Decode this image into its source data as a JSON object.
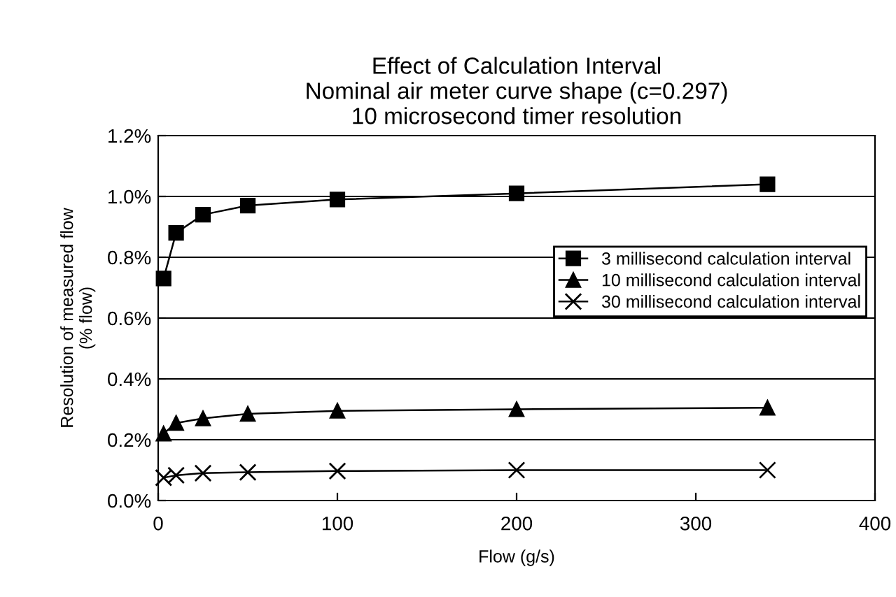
{
  "chart_data": {
    "type": "line",
    "title": "Effect of Calculation Interval\nNominal air meter curve shape (c=0.297)\n10 microsecond timer resolution",
    "xlabel": "Flow (g/s)",
    "ylabel": "Resolution of measured flow\n(% flow)",
    "x": [
      3,
      10,
      25,
      50,
      100,
      200,
      340
    ],
    "series": [
      {
        "name": "3 millisecond calculation interval",
        "color": "#000000",
        "marker": "square",
        "values": [
          0.73,
          0.88,
          0.94,
          0.97,
          0.99,
          1.01,
          1.04
        ]
      },
      {
        "name": "10 millisecond calculation interval",
        "color": "#000000",
        "marker": "triangle",
        "values": [
          0.22,
          0.255,
          0.27,
          0.285,
          0.295,
          0.3,
          0.305
        ]
      },
      {
        "name": "30 millisecond calculation interval",
        "color": "#000000",
        "marker": "cross",
        "values": [
          0.075,
          0.083,
          0.09,
          0.093,
          0.097,
          0.1,
          0.1
        ]
      }
    ],
    "xlim": [
      0,
      400
    ],
    "xticks": [
      0,
      100,
      200,
      300,
      400
    ],
    "ylim": [
      0,
      1.2
    ],
    "yticks": [
      {
        "value": 0,
        "label": "0.0%"
      },
      {
        "value": 0.2,
        "label": "0.2%"
      },
      {
        "value": 0.4,
        "label": "0.4%"
      },
      {
        "value": 0.6,
        "label": "0.6%"
      },
      {
        "value": 0.8,
        "label": "0.8%"
      },
      {
        "value": 1.0,
        "label": "1.0%"
      },
      {
        "value": 1.2,
        "label": "1.2%"
      }
    ],
    "grid": "y",
    "legend": "right",
    "line_style": "solid"
  }
}
